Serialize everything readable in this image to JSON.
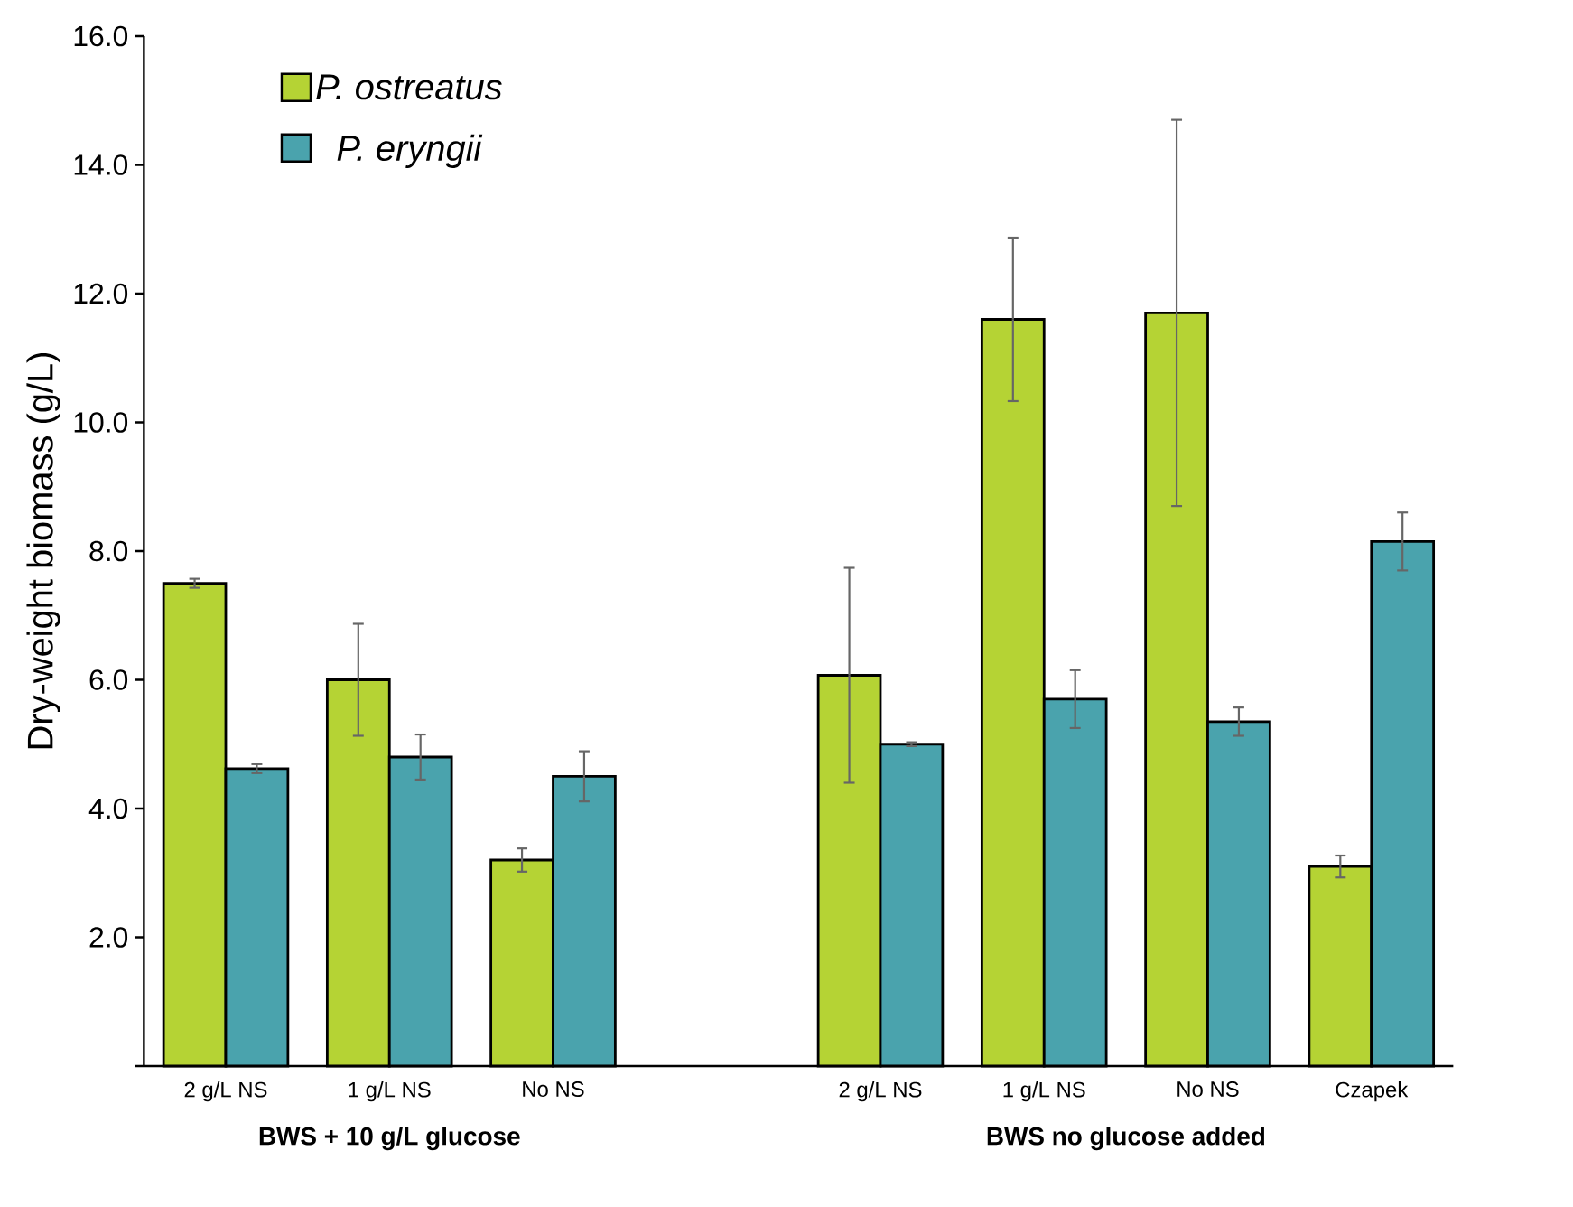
{
  "chart_data": {
    "type": "bar",
    "ylabel": "Dry-weight biomass (g/L)",
    "categories": [
      "2 g/L NS",
      "1 g/L NS",
      "No NS",
      null,
      "2 g/L NS",
      "1 g/L NS",
      "No NS",
      "Czapek"
    ],
    "series": [
      {
        "name": "P. ostreatus",
        "color": "#b5d334",
        "values": [
          7.5,
          6.0,
          3.2,
          null,
          6.07,
          11.6,
          11.7,
          3.1
        ],
        "errors": [
          0.07,
          0.87,
          0.18,
          null,
          1.67,
          1.27,
          3.0,
          0.17
        ]
      },
      {
        "name": "P. eryngii",
        "color": "#4aa3ad",
        "values": [
          4.62,
          4.8,
          4.5,
          null,
          5.0,
          5.7,
          5.35,
          8.15
        ],
        "errors": [
          0.07,
          0.35,
          0.39,
          null,
          0.03,
          0.45,
          0.22,
          0.45
        ]
      }
    ],
    "ylim": [
      0,
      16
    ],
    "yticks": [
      {
        "value": 0,
        "label": null
      },
      {
        "value": 2,
        "label": "2.0"
      },
      {
        "value": 4,
        "label": "4.0"
      },
      {
        "value": 6,
        "label": "6.0"
      },
      {
        "value": 8,
        "label": "8.0"
      },
      {
        "value": 10,
        "label": "10.0"
      },
      {
        "value": 12,
        "label": "12.0"
      },
      {
        "value": 14,
        "label": "14.0"
      },
      {
        "value": 16,
        "label": "16.0"
      }
    ],
    "annotations": [
      "BWS + 10 g/L glucose",
      "BWS no glucose added"
    ],
    "legend": "top left"
  }
}
